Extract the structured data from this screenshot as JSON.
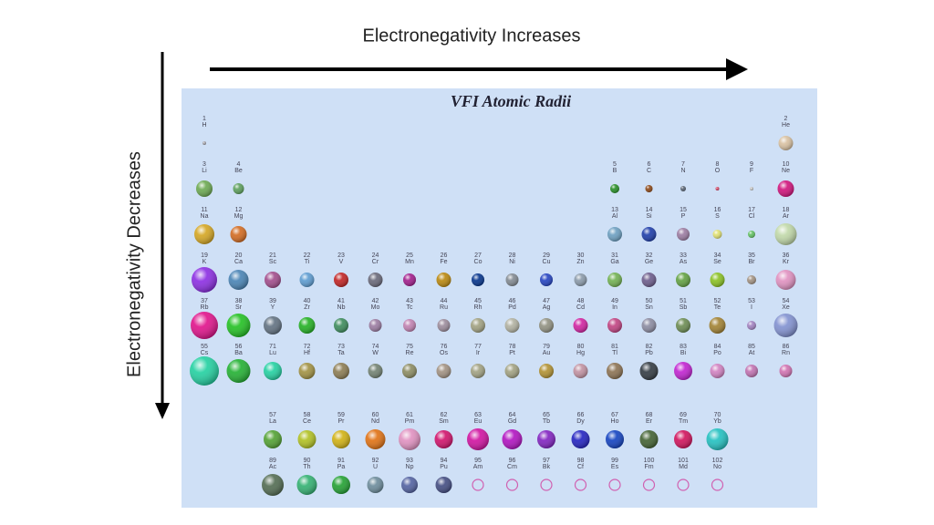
{
  "slide": {
    "top_label": "Electronegativity Increases",
    "side_label": "Electronegativity Decreases"
  },
  "table": {
    "title": "VFI Atomic Radii",
    "elements": [
      {
        "number": "1",
        "symbol": "H",
        "color": "#a0a0a8"
      },
      {
        "number": "2",
        "symbol": "He",
        "color": "#d8c0a0"
      },
      {
        "number": "3",
        "symbol": "Li",
        "color": "#6aa84f"
      },
      {
        "number": "4",
        "symbol": "Be",
        "color": "#5a9e5a"
      },
      {
        "number": "5",
        "symbol": "B",
        "color": "#228b22"
      },
      {
        "number": "6",
        "symbol": "C",
        "color": "#8b4513"
      },
      {
        "number": "7",
        "symbol": "N",
        "color": "#556070"
      },
      {
        "number": "8",
        "symbol": "O",
        "color": "#d04060"
      },
      {
        "number": "9",
        "symbol": "F",
        "color": "#c0c0c0"
      },
      {
        "number": "10",
        "symbol": "Ne",
        "color": "#d0107a"
      },
      {
        "number": "11",
        "symbol": "Na",
        "color": "#d4a520"
      },
      {
        "number": "12",
        "symbol": "Mg",
        "color": "#d2691e"
      },
      {
        "number": "13",
        "symbol": "Al",
        "color": "#6a9ec0"
      },
      {
        "number": "14",
        "symbol": "Si",
        "color": "#1a3aa8"
      },
      {
        "number": "15",
        "symbol": "P",
        "color": "#9a7aa0"
      },
      {
        "number": "16",
        "symbol": "S",
        "color": "#e0e070"
      },
      {
        "number": "17",
        "symbol": "Cl",
        "color": "#60c060"
      },
      {
        "number": "18",
        "symbol": "Ar",
        "color": "#c0d8a8"
      },
      {
        "number": "19",
        "symbol": "K",
        "color": "#8a2be2"
      },
      {
        "number": "20",
        "symbol": "Ca",
        "color": "#4682b4"
      },
      {
        "number": "21",
        "symbol": "Sc",
        "color": "#a04a8a"
      },
      {
        "number": "22",
        "symbol": "Ti",
        "color": "#5a9ad0"
      },
      {
        "number": "23",
        "symbol": "V",
        "color": "#c02020"
      },
      {
        "number": "24",
        "symbol": "Cr",
        "color": "#666677"
      },
      {
        "number": "25",
        "symbol": "Mn",
        "color": "#a01a8a"
      },
      {
        "number": "26",
        "symbol": "Fe",
        "color": "#b8860b"
      },
      {
        "number": "27",
        "symbol": "Co",
        "color": "#00308a"
      },
      {
        "number": "28",
        "symbol": "Ni",
        "color": "#808890"
      },
      {
        "number": "29",
        "symbol": "Cu",
        "color": "#2040c0"
      },
      {
        "number": "30",
        "symbol": "Zn",
        "color": "#8898a8"
      },
      {
        "number": "31",
        "symbol": "Ga",
        "color": "#70b050"
      },
      {
        "number": "32",
        "symbol": "Ge",
        "color": "#6a5a8a"
      },
      {
        "number": "33",
        "symbol": "As",
        "color": "#60a040"
      },
      {
        "number": "34",
        "symbol": "Se",
        "color": "#88c020"
      },
      {
        "number": "35",
        "symbol": "Br",
        "color": "#a09080"
      },
      {
        "number": "36",
        "symbol": "Kr",
        "color": "#e090c0"
      },
      {
        "number": "37",
        "symbol": "Rb",
        "color": "#e0108a"
      },
      {
        "number": "38",
        "symbol": "Sr",
        "color": "#20c020"
      },
      {
        "number": "39",
        "symbol": "Y",
        "color": "#607080"
      },
      {
        "number": "40",
        "symbol": "Zr",
        "color": "#20b020"
      },
      {
        "number": "41",
        "symbol": "Nb",
        "color": "#3a8a5a"
      },
      {
        "number": "42",
        "symbol": "Mo",
        "color": "#9a7aa0"
      },
      {
        "number": "43",
        "symbol": "Tc",
        "color": "#c080b0"
      },
      {
        "number": "44",
        "symbol": "Ru",
        "color": "#9a8a9a"
      },
      {
        "number": "45",
        "symbol": "Rh",
        "color": "#a0a080"
      },
      {
        "number": "46",
        "symbol": "Pd",
        "color": "#b0b0a0"
      },
      {
        "number": "47",
        "symbol": "Ag",
        "color": "#909080"
      },
      {
        "number": "48",
        "symbol": "Cd",
        "color": "#d020a0"
      },
      {
        "number": "49",
        "symbol": "In",
        "color": "#c04080"
      },
      {
        "number": "50",
        "symbol": "Sn",
        "color": "#8a8aa0"
      },
      {
        "number": "51",
        "symbol": "Sb",
        "color": "#6a8a50"
      },
      {
        "number": "52",
        "symbol": "Te",
        "color": "#a08030"
      },
      {
        "number": "53",
        "symbol": "I",
        "color": "#a080c0"
      },
      {
        "number": "54",
        "symbol": "Xe",
        "color": "#8090d0"
      },
      {
        "number": "55",
        "symbol": "Cs",
        "color": "#20d0a0"
      },
      {
        "number": "56",
        "symbol": "Ba",
        "color": "#20b030"
      },
      {
        "number": "57",
        "symbol": "La",
        "color": "#50a030"
      },
      {
        "number": "58",
        "symbol": "Ce",
        "color": "#b0c020"
      },
      {
        "number": "59",
        "symbol": "Pr",
        "color": "#d0b010"
      },
      {
        "number": "60",
        "symbol": "Nd",
        "color": "#e07010"
      },
      {
        "number": "61",
        "symbol": "Pm",
        "color": "#e090c0"
      },
      {
        "number": "62",
        "symbol": "Sm",
        "color": "#d0106a"
      },
      {
        "number": "63",
        "symbol": "Eu",
        "color": "#d010a0"
      },
      {
        "number": "64",
        "symbol": "Gd",
        "color": "#b010c0"
      },
      {
        "number": "65",
        "symbol": "Tb",
        "color": "#8020c0"
      },
      {
        "number": "66",
        "symbol": "Dy",
        "color": "#2020c0"
      },
      {
        "number": "67",
        "symbol": "Ho",
        "color": "#1040c0"
      },
      {
        "number": "68",
        "symbol": "Er",
        "color": "#406030"
      },
      {
        "number": "69",
        "symbol": "Tm",
        "color": "#d0105a"
      },
      {
        "number": "70",
        "symbol": "Yb",
        "color": "#20c0c0"
      },
      {
        "number": "71",
        "symbol": "Lu",
        "color": "#20d0a0"
      },
      {
        "number": "72",
        "symbol": "Hf",
        "color": "#a09040"
      },
      {
        "number": "73",
        "symbol": "Ta",
        "color": "#8a7a50"
      },
      {
        "number": "74",
        "symbol": "W",
        "color": "#708070"
      },
      {
        "number": "75",
        "symbol": "Re",
        "color": "#8a8a60"
      },
      {
        "number": "76",
        "symbol": "Os",
        "color": "#a09080"
      },
      {
        "number": "77",
        "symbol": "Ir",
        "color": "#a0a080"
      },
      {
        "number": "78",
        "symbol": "Pt",
        "color": "#a0a080"
      },
      {
        "number": "79",
        "symbol": "Au",
        "color": "#b09030"
      },
      {
        "number": "80",
        "symbol": "Hg",
        "color": "#c090a0"
      },
      {
        "number": "81",
        "symbol": "Tl",
        "color": "#8a7050"
      },
      {
        "number": "82",
        "symbol": "Pb",
        "color": "#303840"
      },
      {
        "number": "83",
        "symbol": "Bi",
        "color": "#c020d0"
      },
      {
        "number": "84",
        "symbol": "Po",
        "color": "#d080c0"
      },
      {
        "number": "85",
        "symbol": "At",
        "color": "#c070b0"
      },
      {
        "number": "86",
        "symbol": "Rn",
        "color": "#d070b0"
      },
      {
        "number": "89",
        "symbol": "Ac",
        "color": "#506a50"
      },
      {
        "number": "90",
        "symbol": "Th",
        "color": "#30b070"
      },
      {
        "number": "91",
        "symbol": "Pa",
        "color": "#20a030"
      },
      {
        "number": "92",
        "symbol": "U",
        "color": "#6a8a9a"
      },
      {
        "number": "93",
        "symbol": "Np",
        "color": "#5060a0"
      },
      {
        "number": "94",
        "symbol": "Pu",
        "color": "#404a80"
      },
      {
        "number": "95",
        "symbol": "Am",
        "color": "#d060b0"
      },
      {
        "number": "96",
        "symbol": "Cm",
        "color": "#d060b0"
      },
      {
        "number": "97",
        "symbol": "Bk",
        "color": "#d060b0"
      },
      {
        "number": "98",
        "symbol": "Cf",
        "color": "#d060b0"
      },
      {
        "number": "99",
        "symbol": "Es",
        "color": "#d060b0"
      },
      {
        "number": "100",
        "symbol": "Fm",
        "color": "#d060b0"
      },
      {
        "number": "101",
        "symbol": "Md",
        "color": "#d060b0"
      },
      {
        "number": "102",
        "symbol": "No",
        "color": "#d060b0"
      }
    ]
  }
}
